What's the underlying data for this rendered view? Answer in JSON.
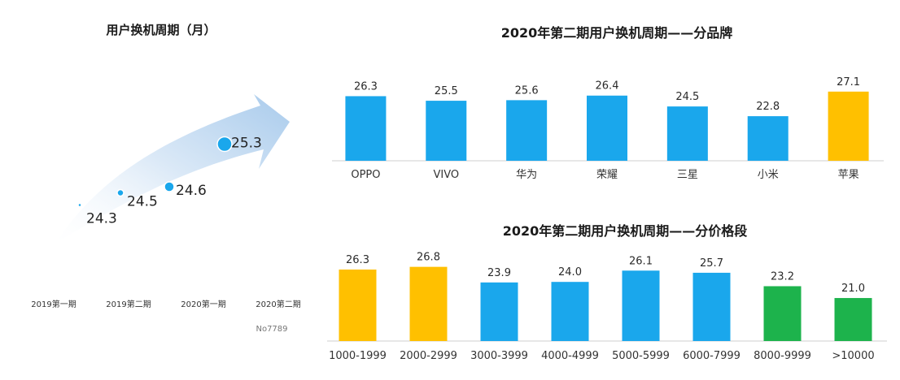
{
  "colors": {
    "blue": "#1AA7EC",
    "orange": "#FFC000",
    "green": "#1DB34C",
    "axis": "#cfcfcf",
    "arrow_light": "#e8f2fb",
    "arrow_mid": "#b8d5ef",
    "dot": "#1AA7EC"
  },
  "watermark": "No7789",
  "chart_data": [
    {
      "type": "line",
      "title": "用户换机周期（月）",
      "categories": [
        "2019第一期",
        "2019第二期",
        "2020第一期",
        "2020第二期"
      ],
      "values": [
        24.3,
        24.5,
        24.6,
        25.3
      ],
      "value_labels": [
        "24.3",
        "24.5",
        "24.6",
        "25.3"
      ],
      "style": "arrow-trend"
    },
    {
      "type": "bar",
      "title": "2020年第二期用户换机周期——分品牌",
      "categories": [
        "OPPO",
        "VIVO",
        "华为",
        "荣耀",
        "三星",
        "小米",
        "苹果"
      ],
      "values": [
        26.3,
        25.5,
        25.6,
        26.4,
        24.5,
        22.8,
        27.1
      ],
      "value_labels": [
        "26.3",
        "25.5",
        "25.6",
        "26.4",
        "24.5",
        "22.8",
        "27.1"
      ],
      "bar_colors": [
        "blue",
        "blue",
        "blue",
        "blue",
        "blue",
        "blue",
        "orange"
      ],
      "grid": false
    },
    {
      "type": "bar",
      "title": "2020年第二期用户换机周期——分价格段",
      "categories": [
        "1000-1999",
        "2000-2999",
        "3000-3999",
        "4000-4999",
        "5000-5999",
        "6000-7999",
        "8000-9999",
        ">10000"
      ],
      "values": [
        26.3,
        26.8,
        23.9,
        24.0,
        26.1,
        25.7,
        23.2,
        21.0
      ],
      "value_labels": [
        "26.3",
        "26.8",
        "23.9",
        "24.0",
        "26.1",
        "25.7",
        "23.2",
        "21.0"
      ],
      "bar_colors": [
        "orange",
        "orange",
        "blue",
        "blue",
        "blue",
        "blue",
        "green",
        "green"
      ],
      "grid": false
    }
  ]
}
